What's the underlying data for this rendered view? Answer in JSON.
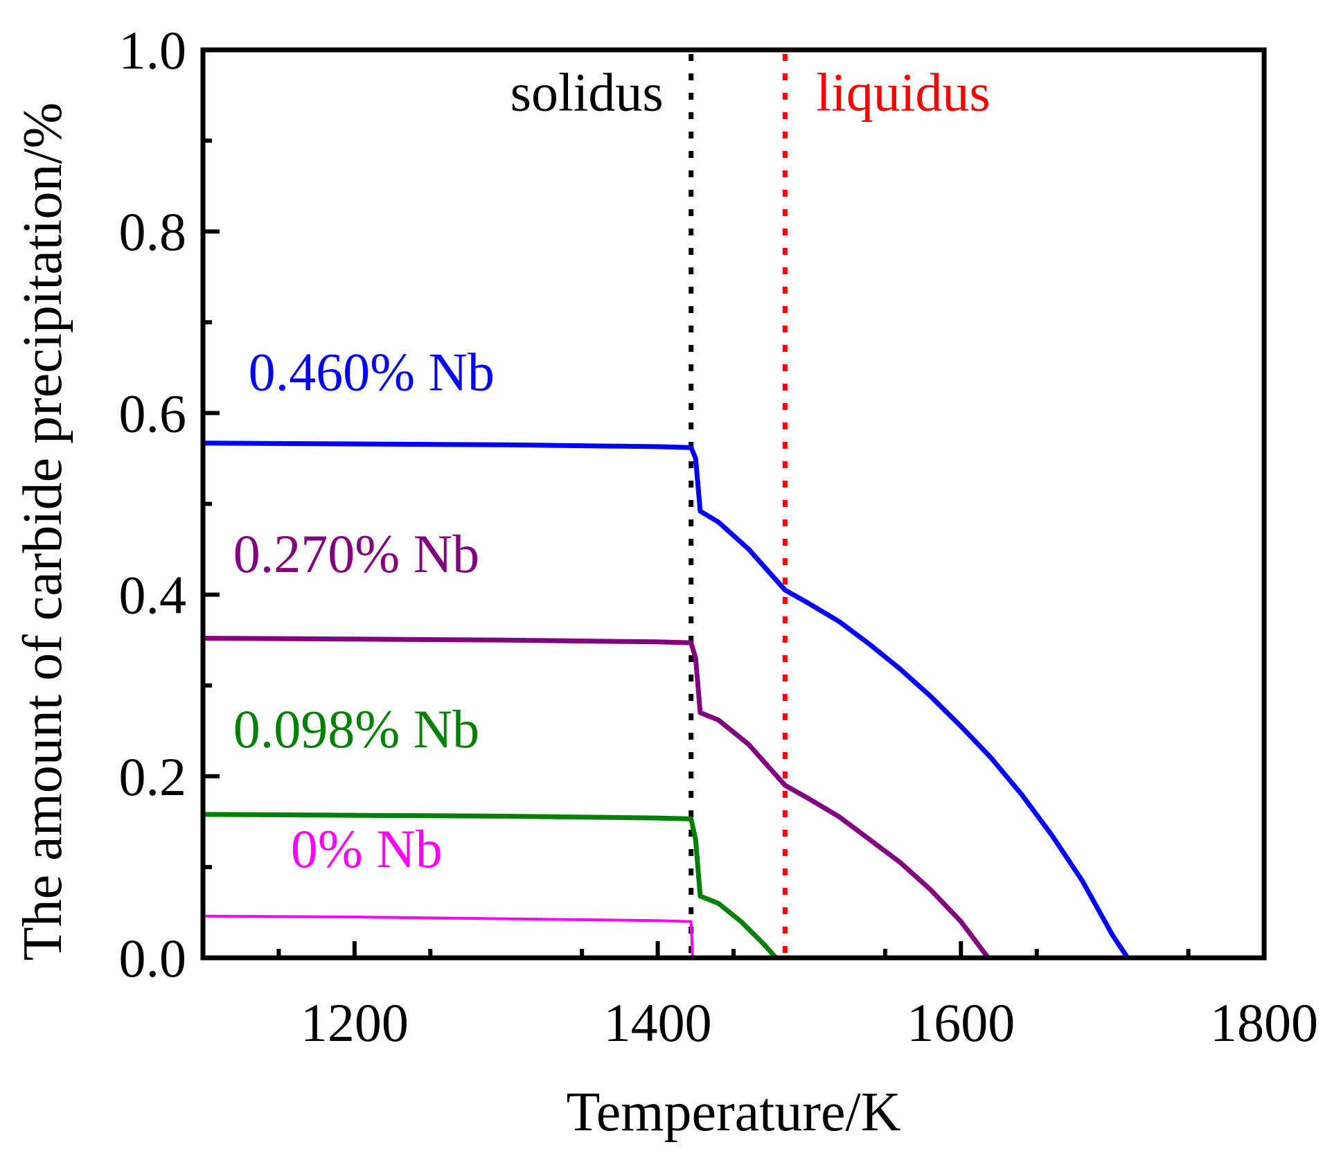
{
  "chart_data": {
    "type": "line",
    "xlabel": "Temperature/K",
    "ylabel": "The amount of carbide precipitation/%",
    "xlim": [
      1100,
      1800
    ],
    "ylim": [
      0,
      1.0
    ],
    "xticks": [
      1200,
      1400,
      1600,
      1800
    ],
    "xtick_labels": [
      "1200",
      "1400",
      "1600",
      "1800"
    ],
    "yticks": [
      0.0,
      0.2,
      0.4,
      0.6,
      0.8,
      1.0
    ],
    "ytick_labels": [
      "0.0",
      "0.2",
      "0.4",
      "0.6",
      "0.8",
      "1.0"
    ],
    "grid": false,
    "series": [
      {
        "name": "0.460% Nb",
        "color": "#0000ff",
        "x": [
          1100,
          1200,
          1300,
          1400,
          1422,
          1425,
          1428,
          1440,
          1460,
          1484,
          1500,
          1520,
          1540,
          1560,
          1580,
          1600,
          1620,
          1640,
          1660,
          1680,
          1700,
          1710
        ],
        "y": [
          0.567,
          0.566,
          0.565,
          0.563,
          0.562,
          0.55,
          0.492,
          0.48,
          0.45,
          0.405,
          0.39,
          0.37,
          0.345,
          0.318,
          0.288,
          0.255,
          0.22,
          0.18,
          0.135,
          0.085,
          0.025,
          0.0
        ]
      },
      {
        "name": "0.270% Nb",
        "color": "#800080",
        "x": [
          1100,
          1200,
          1300,
          1400,
          1422,
          1425,
          1428,
          1440,
          1460,
          1484,
          1500,
          1520,
          1540,
          1560,
          1580,
          1600,
          1618
        ],
        "y": [
          0.352,
          0.351,
          0.35,
          0.348,
          0.347,
          0.33,
          0.27,
          0.262,
          0.235,
          0.19,
          0.175,
          0.155,
          0.13,
          0.105,
          0.075,
          0.04,
          0.0
        ]
      },
      {
        "name": "0.098% Nb",
        "color": "#008000",
        "x": [
          1100,
          1200,
          1300,
          1400,
          1422,
          1425,
          1428,
          1440,
          1455,
          1470,
          1478
        ],
        "y": [
          0.158,
          0.157,
          0.156,
          0.154,
          0.153,
          0.13,
          0.068,
          0.06,
          0.04,
          0.015,
          0.0
        ]
      },
      {
        "name": "0% Nb",
        "color": "#ff00ff",
        "x": [
          1100,
          1200,
          1300,
          1400,
          1422,
          1423
        ],
        "y": [
          0.046,
          0.045,
          0.043,
          0.041,
          0.04,
          0.0
        ]
      }
    ],
    "reference_lines": [
      {
        "label": "solidus",
        "x": 1422,
        "color": "#000000"
      },
      {
        "label": "liquidus",
        "x": 1484,
        "color": "#ff0000"
      }
    ]
  }
}
